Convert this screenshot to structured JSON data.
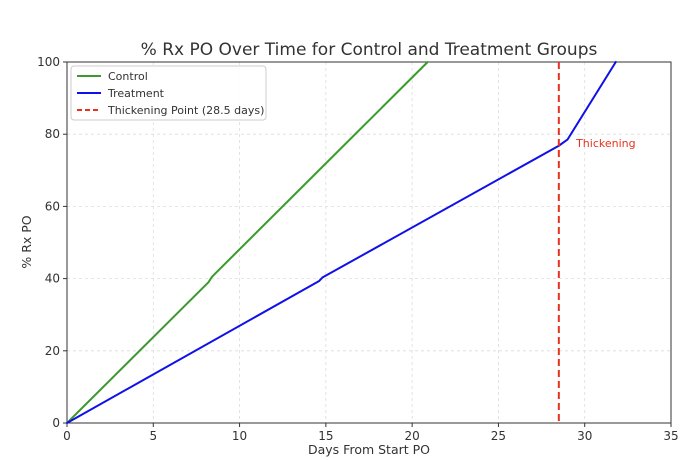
{
  "chart_data": {
    "type": "line",
    "title": "% Rx PO Over Time for Control and Treatment Groups",
    "xlabel": "Days From Start PO",
    "ylabel": "% Rx PO",
    "xlim": [
      0,
      35
    ],
    "ylim": [
      0,
      100
    ],
    "xticks": [
      "0",
      "5",
      "10",
      "15",
      "20",
      "25",
      "30",
      "35"
    ],
    "yticks": [
      "0",
      "20",
      "40",
      "60",
      "80",
      "100"
    ],
    "grid": true,
    "legend_position": "top-left",
    "series": [
      {
        "name": "Control",
        "color": "#3a9a2e",
        "style": "solid",
        "x": [
          0,
          8.2,
          8.4,
          20.9
        ],
        "y": [
          0,
          39,
          40.5,
          100
        ]
      },
      {
        "name": "Treatment",
        "color": "#1010e8",
        "style": "solid",
        "x": [
          0,
          14.6,
          14.8,
          28.5,
          29,
          31.8
        ],
        "y": [
          0,
          39.3,
          40.3,
          76.8,
          78.5,
          100
        ]
      }
    ],
    "vline": {
      "name": "Thickening Point (28.5 days)",
      "x": 28.5,
      "color": "#e8321e",
      "style": "dashed"
    },
    "annotation": {
      "text": "Thickening",
      "x": 29.5,
      "y": 77.5,
      "color": "#e8321e"
    }
  }
}
